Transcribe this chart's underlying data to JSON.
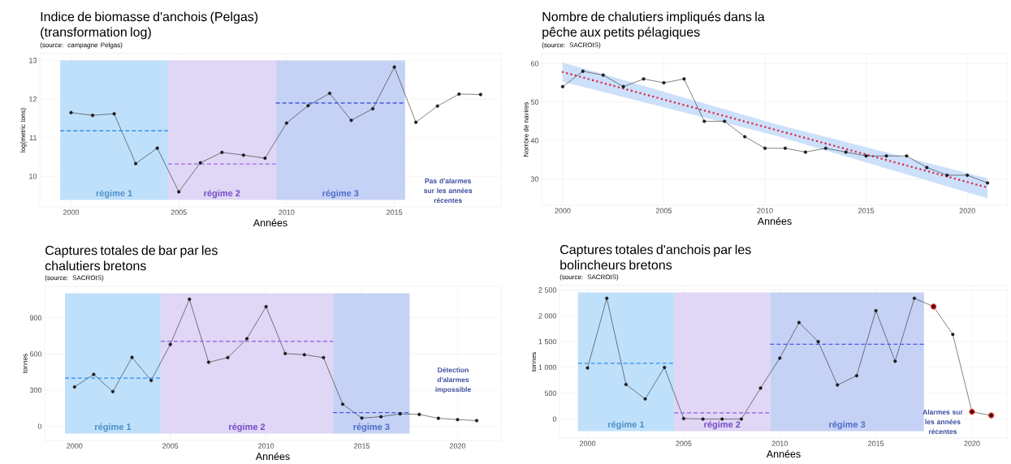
{
  "chart_data": [
    {
      "type": "line",
      "title": "Indice de biomasse d'anchois (Pelgas) (transformation log)",
      "subtitle": "(source: campagne Pelgas)",
      "xlabel": "Années",
      "ylabel": "log(metric tons)",
      "x": [
        2000,
        2001,
        2002,
        2003,
        2004,
        2005,
        2006,
        2007,
        2008,
        2009,
        2010,
        2011,
        2012,
        2013,
        2014,
        2015,
        2016,
        2017,
        2018,
        2019
      ],
      "series": [
        {
          "color": "#1a1a1a",
          "values": [
            11.65,
            11.58,
            11.62,
            10.33,
            10.73,
            9.6,
            10.35,
            10.62,
            10.55,
            10.47,
            11.38,
            11.83,
            12.15,
            11.45,
            11.75,
            12.83,
            11.4,
            11.82,
            12.13,
            12.12
          ]
        },
        {
          "type": "line",
          "x": [
            1999.5,
            2004.5
          ],
          "values": [
            11.18,
            11.18
          ],
          "color": "#2f8fe8",
          "line_style": "dashed",
          "marker": "none"
        },
        {
          "type": "line",
          "x": [
            2004.5,
            2009.5
          ],
          "values": [
            10.32,
            10.32
          ],
          "color": "#9a6ee0",
          "line_style": "dashed",
          "marker": "none"
        },
        {
          "type": "line",
          "x": [
            2009.5,
            2015.5
          ],
          "values": [
            11.9,
            11.9
          ],
          "color": "#4a5ae0",
          "line_style": "dashed",
          "marker": "none"
        }
      ],
      "bands": [
        {
          "axis": "x",
          "from": 1999.5,
          "to": 2004.5,
          "label": "régime 1",
          "color": "#bfe0fb"
        },
        {
          "axis": "x",
          "from": 2004.5,
          "to": 2009.5,
          "label": "régime 2",
          "color": "#e0d6f5"
        },
        {
          "axis": "x",
          "from": 2009.5,
          "to": 2015.5,
          "label": "régime 3",
          "color": "#c6d2f5"
        }
      ],
      "annotations": [
        "Pas d'alarmes sur les années récentes"
      ],
      "xlim": [
        1998.55,
        2019.95
      ],
      "ylim": [
        9.21,
        13.18
      ],
      "xticks": [
        2000,
        2005,
        2010,
        2015
      ],
      "yticks": [
        10,
        11,
        12,
        13
      ],
      "grid": true,
      "marker": "circle",
      "line_style": "solid"
    },
    {
      "type": "line",
      "title": "Nombre de chalutiers impliqués dans la pêche aux petits pélagiques",
      "subtitle": "(source: SACROIS)",
      "xlabel": "Années",
      "ylabel": "Nombre de navires",
      "x": [
        2000,
        2001,
        2002,
        2003,
        2004,
        2005,
        2006,
        2007,
        2008,
        2009,
        2010,
        2011,
        2012,
        2013,
        2014,
        2015,
        2016,
        2017,
        2018,
        2019,
        2020,
        2021
      ],
      "series": [
        {
          "type": "line",
          "x": [
            2000,
            2010.5,
            2021
          ],
          "values": [
            57.8,
            42.8,
            27.8
          ],
          "lower": [
            55.3,
            41.3,
            25.0
          ],
          "upper": [
            60.3,
            44.3,
            30.2
          ],
          "color": "#d9304f",
          "line_style": "dotted",
          "marker": "none"
        },
        {
          "color": "#1a1a1a",
          "values": [
            54,
            58,
            57,
            54,
            56,
            55,
            56,
            45,
            45,
            41,
            38,
            38,
            37,
            38,
            37,
            36,
            36,
            36,
            33,
            31,
            31,
            29
          ]
        }
      ],
      "xlim": [
        1998.96,
        2022.0
      ],
      "ylim": [
        23.2,
        62.6
      ],
      "xticks": [
        2000,
        2005,
        2010,
        2015,
        2020
      ],
      "yticks": [
        30,
        40,
        50,
        60
      ],
      "grid": true,
      "marker": "circle",
      "line_style": "solid"
    },
    {
      "type": "line",
      "title": "Captures totales de bar par les chalutiers bretons",
      "subtitle": "(source: SACROIS)",
      "xlabel": "Années",
      "ylabel": "tonnes",
      "x": [
        2000,
        2001,
        2002,
        2003,
        2004,
        2005,
        2006,
        2007,
        2008,
        2009,
        2010,
        2011,
        2012,
        2013,
        2014,
        2015,
        2016,
        2017,
        2018,
        2019,
        2020,
        2021
      ],
      "series": [
        {
          "color": "#1a1a1a",
          "values": [
            327,
            431,
            288,
            572,
            381,
            679,
            1054,
            532,
            570,
            727,
            993,
            604,
            594,
            570,
            184,
            69,
            80,
            104,
            99,
            67,
            56,
            48
          ]
        },
        {
          "type": "line",
          "x": [
            1999.5,
            2004.5
          ],
          "values": [
            400,
            400
          ],
          "color": "#2f8fe8",
          "line_style": "dashed",
          "marker": "none"
        },
        {
          "type": "line",
          "x": [
            2004.5,
            2013.5
          ],
          "values": [
            705,
            705
          ],
          "color": "#9a6ee0",
          "line_style": "dashed",
          "marker": "none"
        },
        {
          "type": "line",
          "x": [
            2013.5,
            2017.5
          ],
          "values": [
            114,
            114
          ],
          "color": "#4a5ae0",
          "line_style": "dashed",
          "marker": "none"
        }
      ],
      "bands": [
        {
          "axis": "x",
          "from": 1999.5,
          "to": 2004.5,
          "label": "régime 1",
          "color": "#bfe0fb"
        },
        {
          "axis": "x",
          "from": 2004.5,
          "to": 2013.5,
          "label": "régime 2",
          "color": "#e0d6f5"
        },
        {
          "axis": "x",
          "from": 2013.5,
          "to": 2017.5,
          "label": "régime 3",
          "color": "#c6d2f5"
        }
      ],
      "annotations": [
        "Détection d'alarmes impossible"
      ],
      "xlim": [
        1998.44,
        2022.27
      ],
      "ylim": [
        -117,
        1161
      ],
      "xticks": [
        2000,
        2005,
        2010,
        2015,
        2020
      ],
      "yticks": [
        0,
        300,
        600,
        900
      ],
      "grid": true,
      "marker": "circle",
      "line_style": "solid"
    },
    {
      "type": "line",
      "title": "Captures totales d'anchois par les bolincheurs bretons",
      "subtitle": "(source: SACROIS)",
      "xlabel": "Années",
      "ylabel": "tonnes",
      "x": [
        2000,
        2001,
        2002,
        2003,
        2004,
        2005,
        2006,
        2007,
        2008,
        2009,
        2010,
        2011,
        2012,
        2013,
        2014,
        2015,
        2016,
        2017,
        2018,
        2019,
        2020,
        2021
      ],
      "series": [
        {
          "color": "#1a1a1a",
          "values": [
            990,
            2340,
            670,
            390,
            1000,
            10,
            0,
            0,
            0,
            600,
            1180,
            1870,
            1500,
            660,
            840,
            2100,
            1120,
            2340,
            2180,
            1640,
            140,
            70
          ]
        },
        {
          "type": "line",
          "x": [
            1999.5,
            2004.5
          ],
          "values": [
            1080,
            1080
          ],
          "color": "#2f8fe8",
          "line_style": "dashed",
          "marker": "none"
        },
        {
          "type": "line",
          "x": [
            2004.5,
            2009.5
          ],
          "values": [
            120,
            120
          ],
          "color": "#9a6ee0",
          "line_style": "dashed",
          "marker": "none"
        },
        {
          "type": "line",
          "x": [
            2009.5,
            2017.5
          ],
          "values": [
            1450,
            1450
          ],
          "color": "#4a5ae0",
          "line_style": "dashed",
          "marker": "none"
        },
        {
          "type": "scatter",
          "x": [
            2018,
            2020,
            2021
          ],
          "values": [
            2180,
            140,
            70
          ],
          "color": "#e31a1c",
          "marker": "circle"
        }
      ],
      "bands": [
        {
          "axis": "x",
          "from": 1999.5,
          "to": 2004.5,
          "label": "régime 1",
          "color": "#bfe0fb"
        },
        {
          "axis": "x",
          "from": 2004.5,
          "to": 2009.5,
          "label": "régime 2",
          "color": "#e0d6f5"
        },
        {
          "axis": "x",
          "from": 2009.5,
          "to": 2017.5,
          "label": "régime 3",
          "color": "#c6d2f5"
        }
      ],
      "annotations": [
        "Alarmes sur les années récentes"
      ],
      "xlim": [
        1998.54,
        2021.86
      ],
      "ylim": [
        -368,
        2587
      ],
      "xticks": [
        2000,
        2005,
        2010,
        2015,
        2020
      ],
      "yticks": [
        0,
        500,
        {
          "value": 1000,
          "label": "1 000"
        },
        {
          "value": 1500,
          "label": "1 500"
        },
        {
          "value": 2000,
          "label": "2 000"
        },
        {
          "value": 2500,
          "label": "2 500"
        }
      ],
      "grid": true,
      "marker": "circle",
      "line_style": "solid"
    }
  ]
}
